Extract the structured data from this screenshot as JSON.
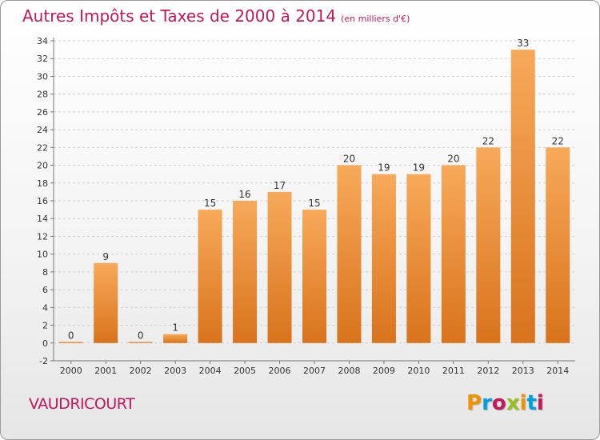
{
  "header": {
    "title": "Autres Impôts et Taxes de 2000 à 2014",
    "unit": "(en milliers d'€)"
  },
  "footer": {
    "place": "VAUDRICOURT",
    "logo": "Proxiti",
    "logo_colors": [
      "#f39200",
      "#009fe3",
      "#c2185b",
      "#95c11f",
      "#f39200",
      "#009fe3",
      "#c2185b"
    ]
  },
  "chart_data": {
    "type": "bar",
    "categories": [
      "2000",
      "2001",
      "2002",
      "2003",
      "2004",
      "2005",
      "2006",
      "2007",
      "2008",
      "2009",
      "2010",
      "2011",
      "2012",
      "2013",
      "2014"
    ],
    "values": [
      0,
      9,
      0,
      1,
      15,
      16,
      17,
      15,
      20,
      19,
      19,
      20,
      22,
      33,
      22
    ],
    "data_labels": [
      "0",
      "9",
      "0",
      "1",
      "15",
      "16",
      "17",
      "15",
      "20",
      "19",
      "19",
      "20",
      "22",
      "33",
      "22"
    ],
    "yticks": [
      -2,
      0,
      2,
      4,
      6,
      8,
      10,
      12,
      14,
      16,
      18,
      20,
      22,
      24,
      26,
      28,
      30,
      32,
      34
    ],
    "ylim": [
      -2,
      34
    ],
    "grid": "horizontal dashed",
    "colors": {
      "bar_light": "#f7a95a",
      "bar_dark": "#d9731c",
      "label_text": "#333333",
      "title": "#c2185b"
    }
  }
}
